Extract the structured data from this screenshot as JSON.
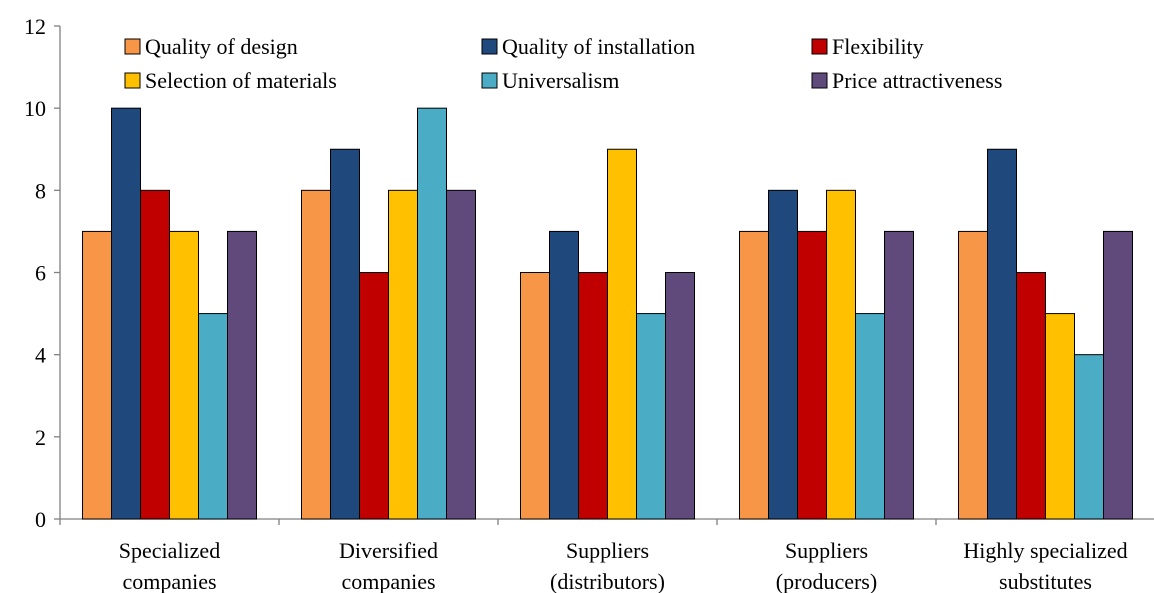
{
  "chart_data": {
    "type": "bar",
    "categories": [
      [
        "Specialized",
        "companies"
      ],
      [
        "Diversified",
        "companies"
      ],
      [
        "Suppliers",
        "(distributors)"
      ],
      [
        "Suppliers",
        "(producers)"
      ],
      [
        "Highly specialized",
        "substitutes"
      ]
    ],
    "series": [
      {
        "name": "Quality of design",
        "color": "#F79646",
        "values": [
          7,
          8,
          6,
          7,
          7
        ]
      },
      {
        "name": "Quality of installation",
        "color": "#1F497D",
        "values": [
          10,
          9,
          7,
          8,
          9
        ]
      },
      {
        "name": "Flexibility",
        "color": "#C00000",
        "values": [
          8,
          6,
          6,
          7,
          6
        ]
      },
      {
        "name": "Selection of materials",
        "color": "#FFC000",
        "values": [
          7,
          8,
          9,
          8,
          5
        ]
      },
      {
        "name": "Universalism",
        "color": "#4BACC6",
        "values": [
          5,
          10,
          5,
          5,
          4
        ]
      },
      {
        "name": "Price attractiveness",
        "color": "#604A7B",
        "values": [
          7,
          8,
          6,
          7,
          7
        ]
      }
    ],
    "ylim": [
      0,
      12
    ],
    "yticks": [
      "0",
      "2",
      "4",
      "6",
      "8",
      "10",
      "12"
    ],
    "legend_position": "top, inside plot, 3 columns",
    "grid": false,
    "title": "",
    "xlabel": "",
    "ylabel": ""
  }
}
